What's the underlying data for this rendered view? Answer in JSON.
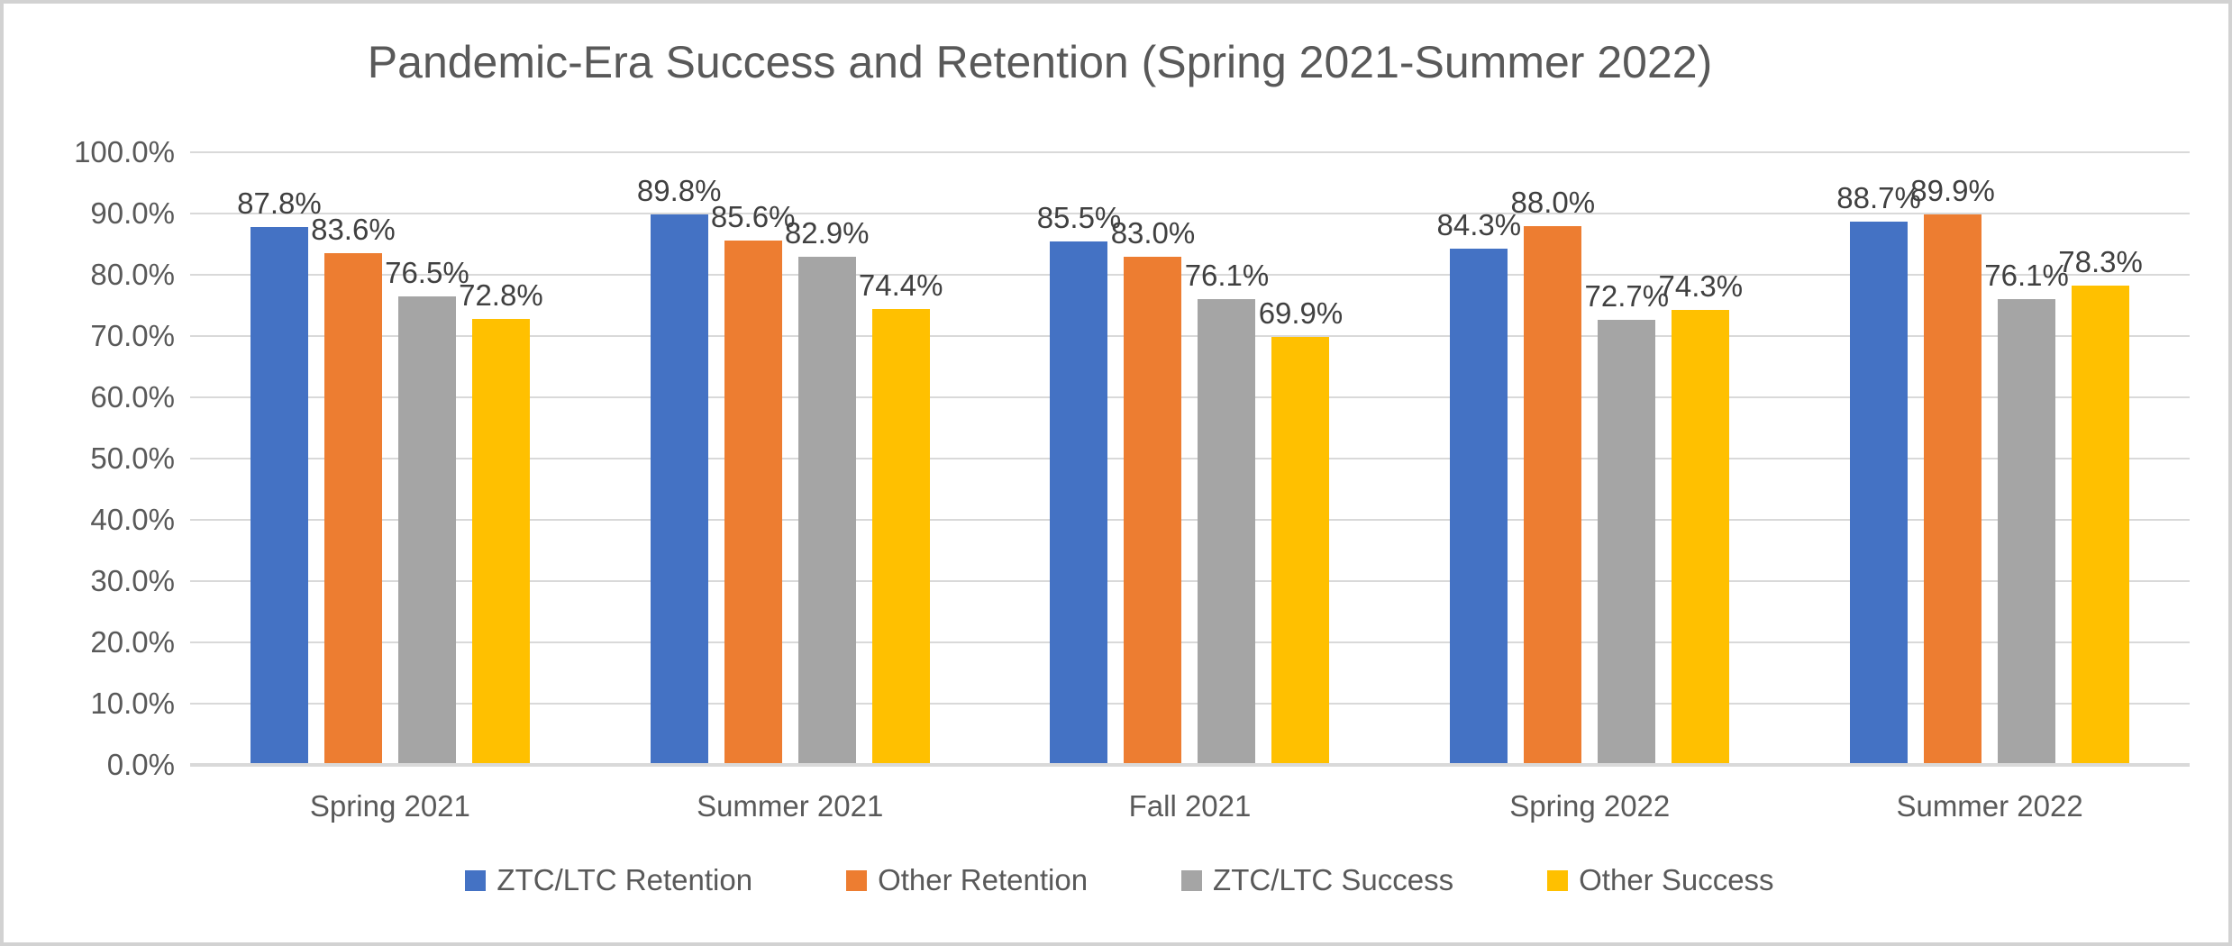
{
  "chart_data": {
    "type": "bar",
    "title": "Pandemic-Era Success and Retention (Spring 2021-Summer 2022)",
    "categories": [
      "Spring 2021",
      "Summer 2021",
      "Fall 2021",
      "Spring 2022",
      "Summer 2022"
    ],
    "series": [
      {
        "name": "ZTC/LTC Retention",
        "color": "#4472C4",
        "values": [
          87.8,
          89.8,
          85.5,
          84.3,
          88.7
        ],
        "labels": [
          "87.8%",
          "89.8%",
          "85.5%",
          "84.3%",
          "88.7%"
        ]
      },
      {
        "name": "Other Retention",
        "color": "#ED7D31",
        "values": [
          83.6,
          85.6,
          83.0,
          88.0,
          89.9
        ],
        "labels": [
          "83.6%",
          "85.6%",
          "83.0%",
          "88.0%",
          "89.9%"
        ]
      },
      {
        "name": "ZTC/LTC Success",
        "color": "#A5A5A5",
        "values": [
          76.5,
          82.9,
          76.1,
          72.7,
          76.1
        ],
        "labels": [
          "76.5%",
          "82.9%",
          "76.1%",
          "72.7%",
          "76.1%"
        ]
      },
      {
        "name": "Other Success",
        "color": "#FFC000",
        "values": [
          72.8,
          74.4,
          69.9,
          74.3,
          78.3
        ],
        "labels": [
          "72.8%",
          "74.4%",
          "69.9%",
          "74.3%",
          "78.3%"
        ]
      }
    ],
    "y_axis": {
      "min": 0,
      "max": 100,
      "step": 10,
      "tick_labels": [
        "100.0%",
        "90.0%",
        "80.0%",
        "70.0%",
        "60.0%",
        "50.0%",
        "40.0%",
        "30.0%",
        "20.0%",
        "10.0%",
        "0.0%"
      ]
    },
    "grid": true,
    "legend_position": "bottom",
    "colors": {
      "gridline": "#d9d9d9",
      "axis_text": "#595959",
      "title_text": "#595959",
      "data_label_text": "#404040",
      "frame_border": "#d2d2d2",
      "background": "#ffffff"
    }
  }
}
